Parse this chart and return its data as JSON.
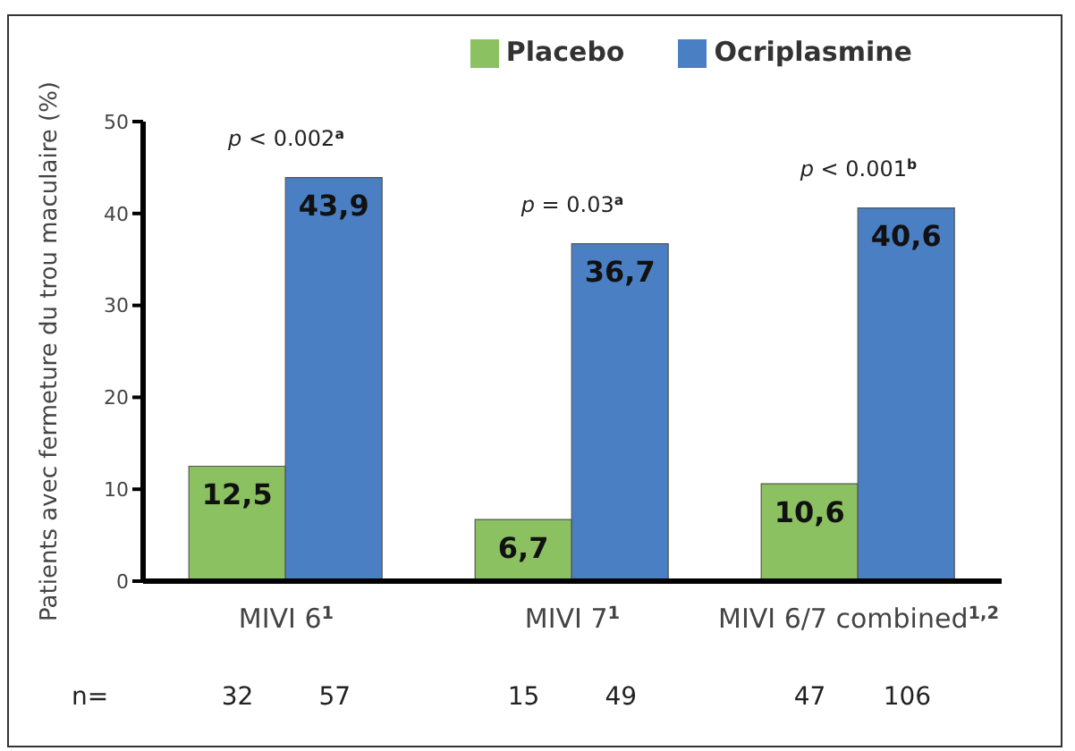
{
  "chart_data": {
    "type": "bar",
    "ylabel": "Patients avec fermeture du trou maculaire (%)",
    "categories": [
      "MIVI 6$^{1}$",
      "MIVI 7$^{1}$",
      "MIVI 6/7 combined$^{1,2}$"
    ],
    "series": [
      {
        "name": "Placebo",
        "color": "#8cc162",
        "values": [
          12.5,
          6.7,
          10.6
        ],
        "value_labels": [
          "12,5",
          "6,7",
          "10,6"
        ]
      },
      {
        "name": "Ocriplasmine",
        "color": "#4a7fc3",
        "values": [
          43.9,
          36.7,
          40.6
        ],
        "value_labels": [
          "43,9",
          "36,7",
          "40,6"
        ]
      }
    ],
    "ylim": [
      0,
      50
    ],
    "yticks": [
      0,
      10,
      20,
      30,
      40,
      50
    ],
    "grid": false,
    "legend": "top right",
    "annotations": [
      "p < 0.002$^{a}$",
      "p = 0.03$^{a}$",
      "p < 0.001$^{b}$",
      "n=",
      "32",
      "57",
      "15",
      "49",
      "47",
      "106"
    ]
  }
}
